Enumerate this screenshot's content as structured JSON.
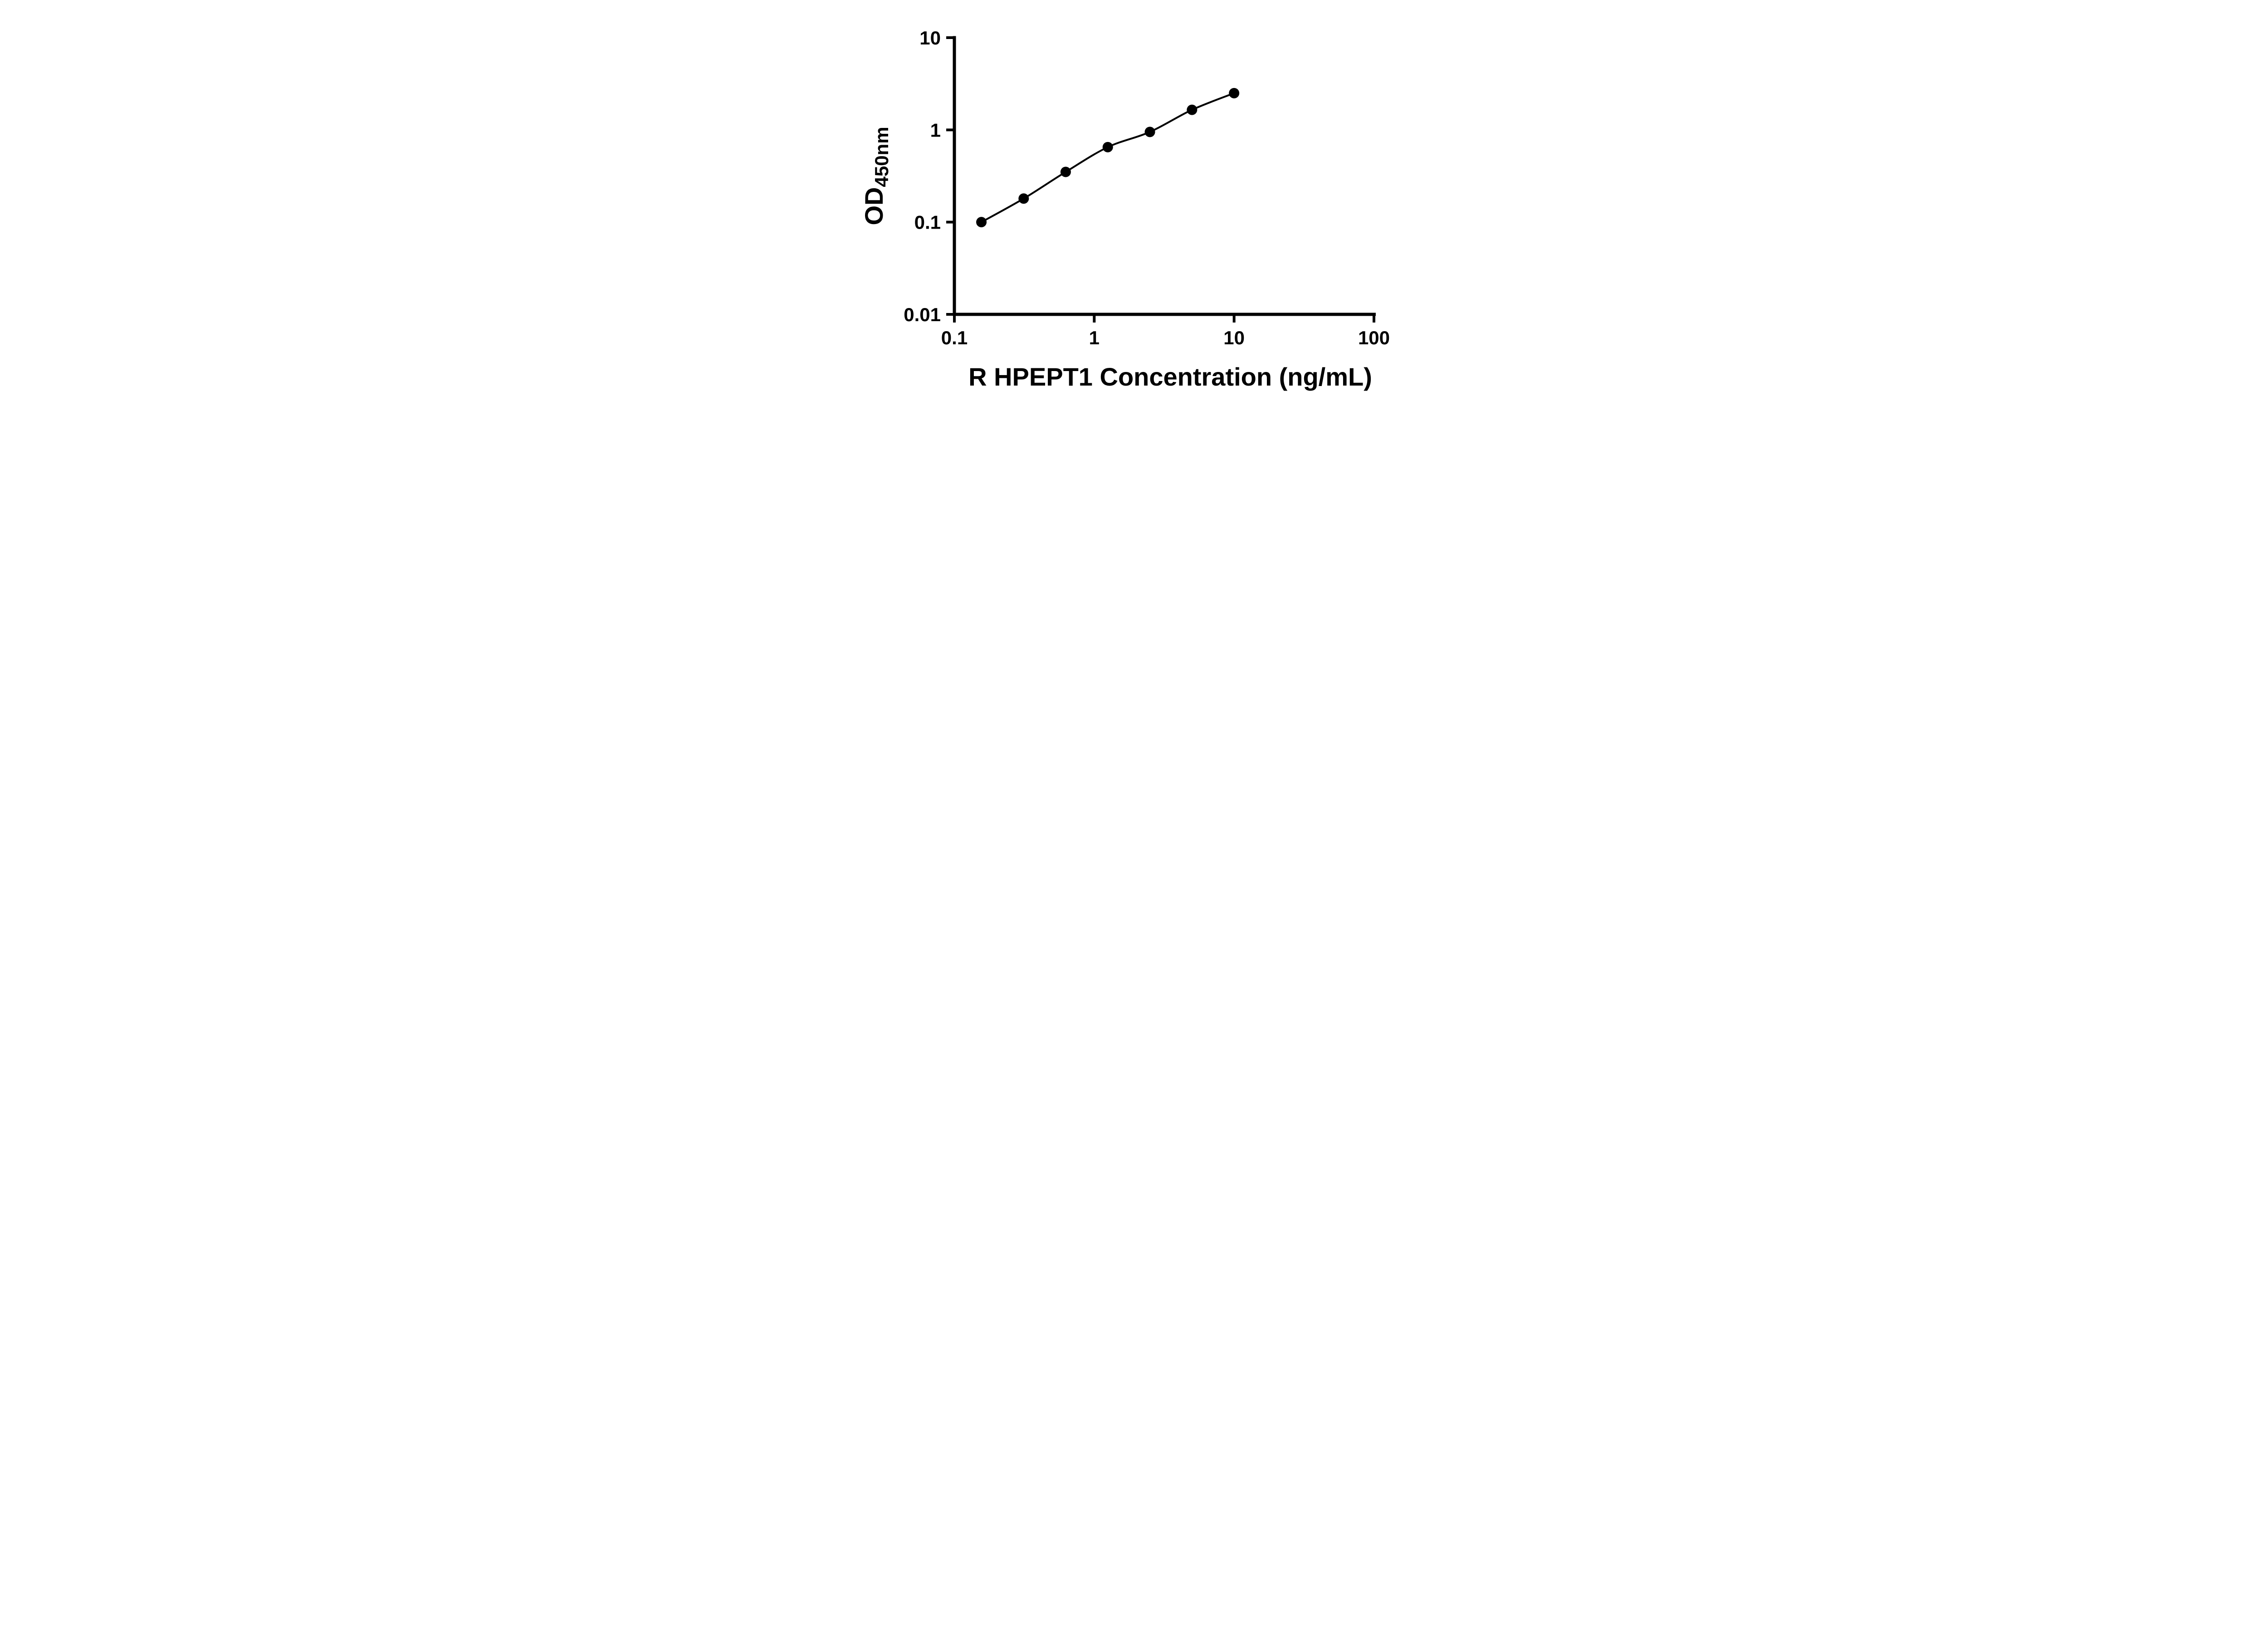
{
  "chart_data": {
    "type": "scatter",
    "title": "",
    "xlabel": "R HPEPT1 Concentration (ng/mL)",
    "ylabel_main": "OD",
    "ylabel_sub": "450nm",
    "x_scale": "log",
    "y_scale": "log",
    "xlim": [
      0.1,
      100
    ],
    "ylim": [
      0.01,
      10
    ],
    "x": [
      0.156,
      0.313,
      0.625,
      1.25,
      2.5,
      5,
      10
    ],
    "y": [
      0.1,
      0.18,
      0.35,
      0.65,
      0.95,
      1.65,
      2.5
    ],
    "x_ticks": [
      0.1,
      1,
      10,
      100
    ],
    "x_tick_labels": [
      "0.1",
      "1",
      "10",
      "100"
    ],
    "y_ticks": [
      0.01,
      0.1,
      1,
      10
    ],
    "y_tick_labels": [
      "0.01",
      "0.1",
      "1",
      "10"
    ],
    "grid": false,
    "legend": null,
    "marker_color": "#000000",
    "line_color": "#000000",
    "axis_color": "#000000",
    "background_color": "#ffffff"
  }
}
